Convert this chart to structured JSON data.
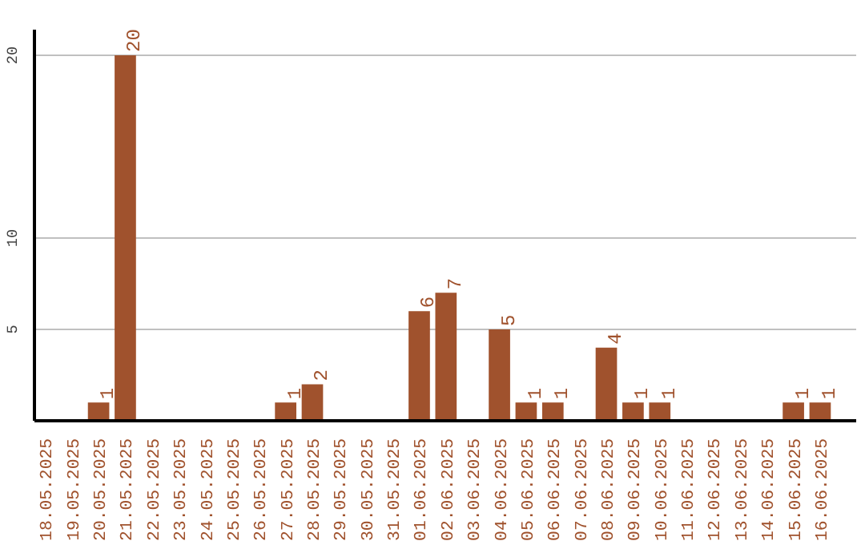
{
  "chart_data": {
    "type": "bar",
    "categories": [
      "18.05.2025",
      "19.05.2025",
      "20.05.2025",
      "21.05.2025",
      "22.05.2025",
      "23.05.2025",
      "24.05.2025",
      "25.05.2025",
      "26.05.2025",
      "27.05.2025",
      "28.05.2025",
      "29.05.2025",
      "30.05.2025",
      "31.05.2025",
      "01.06.2025",
      "02.06.2025",
      "03.06.2025",
      "04.06.2025",
      "05.06.2025",
      "06.06.2025",
      "07.06.2025",
      "08.06.2025",
      "09.06.2025",
      "10.06.2025",
      "11.06.2025",
      "12.06.2025",
      "13.06.2025",
      "14.06.2025",
      "15.06.2025",
      "16.06.2025"
    ],
    "values": [
      0,
      0,
      1,
      20,
      0,
      0,
      0,
      0,
      0,
      1,
      2,
      0,
      0,
      0,
      6,
      7,
      0,
      5,
      1,
      1,
      0,
      4,
      1,
      1,
      0,
      0,
      0,
      0,
      1,
      1
    ],
    "value_labels": [
      null,
      null,
      "1",
      "20",
      null,
      null,
      null,
      null,
      null,
      "1",
      "2",
      null,
      null,
      null,
      "6",
      "7",
      null,
      "5",
      "1",
      "1",
      null,
      "4",
      "1",
      "1",
      null,
      null,
      null,
      null,
      "1",
      "1"
    ],
    "color": "#a0522d",
    "ylim": [
      0,
      21.4
    ],
    "yticks": [
      5,
      10,
      20
    ],
    "grid": "y"
  }
}
